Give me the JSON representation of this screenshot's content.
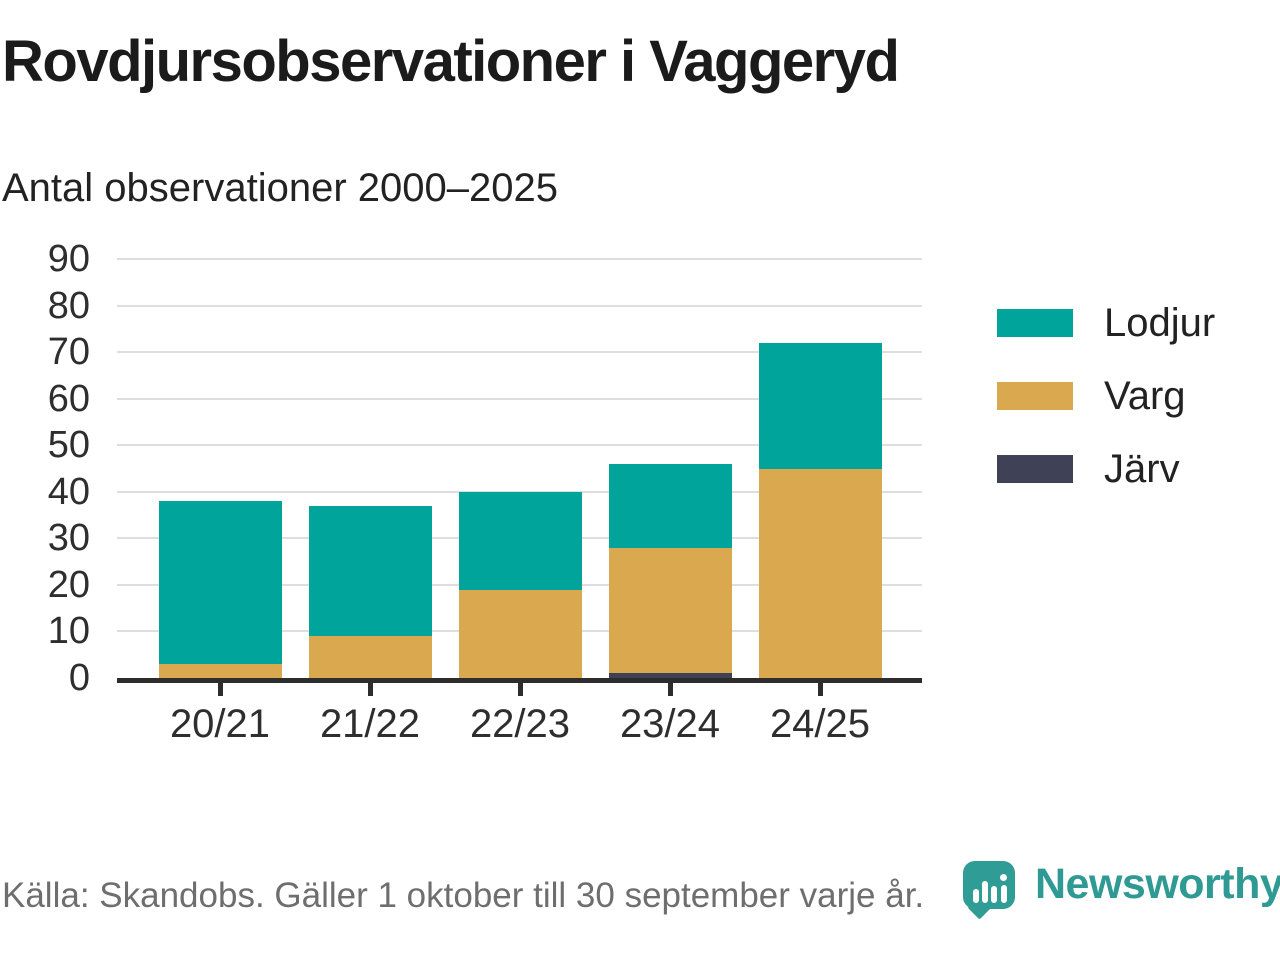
{
  "header": {
    "title": "Rovdjursobservationer i Vaggeryd",
    "subtitle": "Antal observationer 2000–2025"
  },
  "chart_data": {
    "type": "bar",
    "stacked": true,
    "title": "Rovdjursobservationer i Vaggeryd",
    "subtitle": "Antal observationer 2000–2025",
    "categories": [
      "20/21",
      "21/22",
      "22/23",
      "23/24",
      "24/25"
    ],
    "series": [
      {
        "name": "Lodjur",
        "color": "#00a49b",
        "values": [
          35,
          28,
          21,
          18,
          27
        ]
      },
      {
        "name": "Varg",
        "color": "#d9a84f",
        "values": [
          3,
          9,
          19,
          27,
          45
        ]
      },
      {
        "name": "Järv",
        "color": "#3f4156",
        "values": [
          0,
          0,
          0,
          1,
          0
        ]
      }
    ],
    "totals": [
      38,
      37,
      40,
      46,
      72
    ],
    "xlabel": "",
    "ylabel": "",
    "ylim": [
      0,
      90
    ],
    "ytick_step": 10,
    "grid": true,
    "legend_position": "right"
  },
  "colors": {
    "accent_teal": "#00a49b",
    "gold": "#d9a84f",
    "dark_slate": "#3f4156",
    "axis": "#2d2d2d",
    "gridline": "#dedede",
    "brand_teal": "#2f9a93"
  },
  "footer": {
    "source": "Källa: Skandobs. Gäller 1 oktober till 30 september varje år."
  },
  "branding": {
    "name": "Newsworthy"
  }
}
